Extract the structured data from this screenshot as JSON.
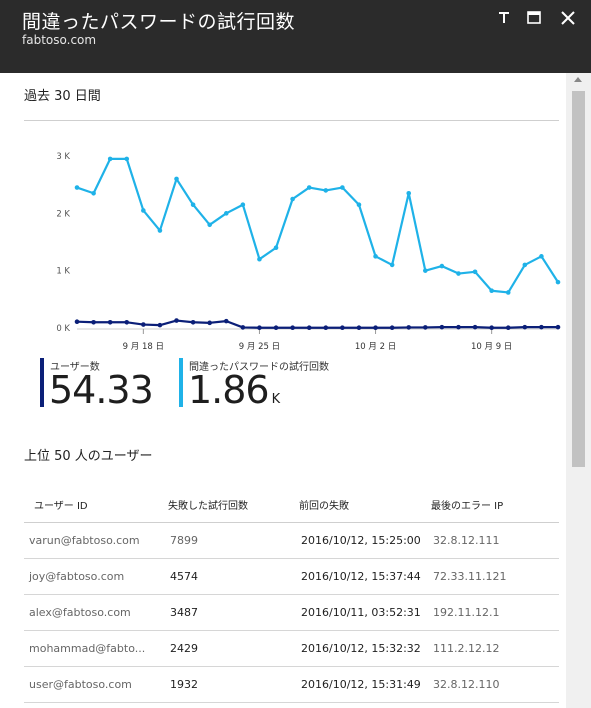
{
  "window": {
    "title": "間違ったパスワードの試行回数",
    "subtitle": "fabtoso.com",
    "controls": [
      "pin-icon",
      "maximize-icon",
      "close-icon"
    ]
  },
  "period_label": "過去 30 日間",
  "chart_data": {
    "type": "line",
    "x_tick_labels": [
      "9 月 18 日",
      "9 月 25 日",
      "10 月 2 日",
      "10 月 9 日"
    ],
    "y_tick_labels": [
      "0 K",
      "1 K",
      "2 K",
      "3 K"
    ],
    "ylim": [
      0,
      3000
    ],
    "series": [
      {
        "name": "間違ったパスワードの試行回数",
        "color": "#1fb2e8",
        "values": [
          2450,
          2350,
          2950,
          2950,
          2050,
          1700,
          2600,
          2150,
          1800,
          2000,
          2150,
          1200,
          1400,
          2250,
          2450,
          2400,
          2450,
          2150,
          1250,
          1100,
          2350,
          1000,
          1080,
          950,
          980,
          650,
          620,
          1100,
          1250,
          800
        ]
      },
      {
        "name": "ユーザー数",
        "color": "#0b1f78",
        "values": [
          110,
          100,
          100,
          100,
          60,
          50,
          130,
          100,
          90,
          120,
          10,
          5,
          5,
          5,
          5,
          5,
          5,
          5,
          5,
          5,
          10,
          10,
          15,
          15,
          15,
          5,
          5,
          15,
          15,
          15
        ]
      }
    ]
  },
  "kpis": [
    {
      "label": "ユーザー数",
      "value": "54.33",
      "unit": "",
      "color": "#0b1f78"
    },
    {
      "label": "間違ったパスワードの試行回数",
      "value": "1.86",
      "unit": "K",
      "color": "#1fb2e8"
    }
  ],
  "top_users_title": "上位 50 人のユーザー",
  "table": {
    "columns": [
      "ユーザー ID",
      "失敗した試行回数",
      "前回の失敗",
      "最後のエラー IP"
    ],
    "rows": [
      [
        "varun@fabtoso.com",
        "7899",
        "2016/10/12, 15:25:00",
        "32.8.12.111"
      ],
      [
        "joy@fabtoso.com",
        "4574",
        "2016/10/12, 15:37:44",
        "72.33.11.121"
      ],
      [
        "alex@fabtoso.com",
        "3487",
        "2016/10/11, 03:52:31",
        "192.11.12.1"
      ],
      [
        "mohammad@fabto...",
        "2429",
        "2016/10/12, 15:32:32",
        "111.2.12.12"
      ],
      [
        "user@fabtoso.com",
        "1932",
        "2016/10/12, 15:31:49",
        "32.8.12.110"
      ]
    ]
  }
}
